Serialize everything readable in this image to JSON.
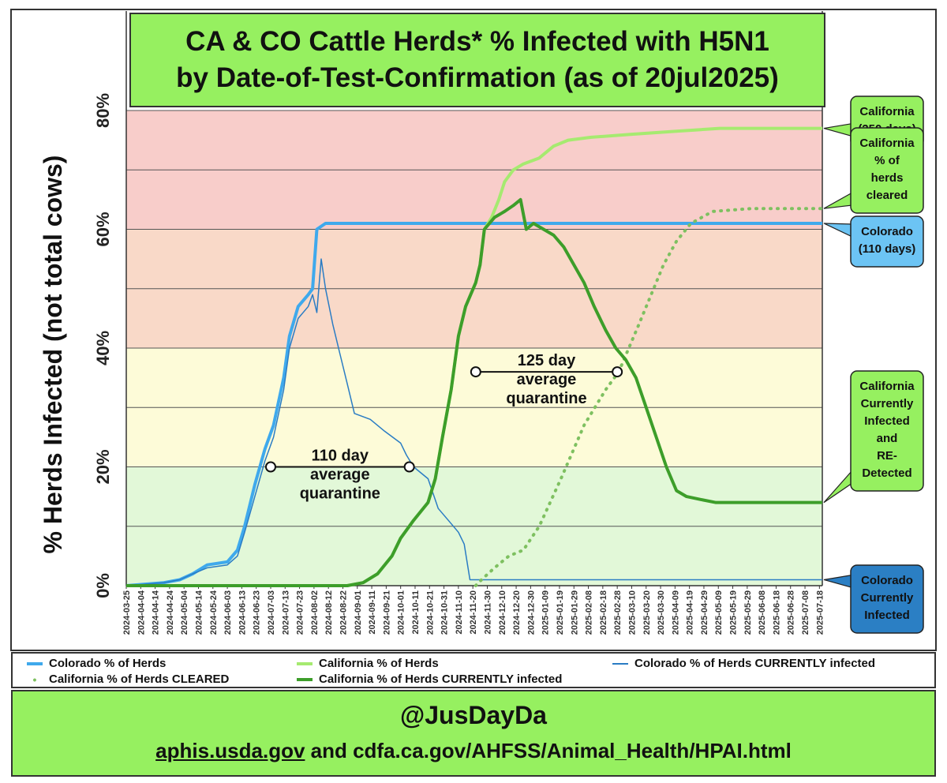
{
  "title": {
    "line1": "CA & CO Cattle Herds* % Infected with H5N1",
    "line2": "by Date-of-Test-Confirmation (as of 20jul2025)"
  },
  "footer": {
    "handle": "@JusDayDa",
    "source_link": "aphis.usda.gov",
    "source_rest": " and cdfa.ca.gov/AHFSS/Animal_Health/HPAI.html"
  },
  "legend": {
    "items": [
      {
        "label": "Colorado % of Herds",
        "color": "#3fa9ec",
        "style": "line"
      },
      {
        "label": "California % of Herds",
        "color": "#a6ea70",
        "style": "line"
      },
      {
        "label": "Colorado % of Herds CURRENTLY infected",
        "color": "#2a7cc4",
        "style": "thin"
      },
      {
        "label": "California % of Herds CLEARED",
        "color": "#7ec060",
        "style": "dot"
      },
      {
        "label": "California % of Herds CURRENTLY infected",
        "color": "#3d9e2a",
        "style": "line"
      }
    ]
  },
  "chart_data": {
    "type": "line",
    "ylabel": "% Herds Infected (not total cows)",
    "ylim": [
      0,
      80
    ],
    "yticks": [
      "0%",
      "20%",
      "40%",
      "60%",
      "80%"
    ],
    "x_start": "2024-03-25",
    "x_end": "2025-07-20",
    "x_tick_labels": [
      "2024-03-25",
      "2024-04-04",
      "2024-04-14",
      "2024-04-24",
      "2024-05-04",
      "2024-05-14",
      "2024-05-24",
      "2024-06-03",
      "2024-06-13",
      "2024-06-23",
      "2024-07-03",
      "2024-07-13",
      "2024-07-23",
      "2024-08-02",
      "2024-08-12",
      "2024-08-22",
      "2024-09-01",
      "2024-09-11",
      "2024-09-21",
      "2024-10-01",
      "2024-10-11",
      "2024-10-21",
      "2024-10-31",
      "2024-11-10",
      "2024-11-20",
      "2024-11-30",
      "2024-12-10",
      "2024-12-20",
      "2024-12-30",
      "2025-01-09",
      "2025-01-19",
      "2025-01-29",
      "2025-02-08",
      "2025-02-18",
      "2025-02-28",
      "2025-03-10",
      "2025-03-20",
      "2025-03-30",
      "2025-04-09",
      "2025-04-19",
      "2025-04-29",
      "2025-05-09",
      "2025-05-19",
      "2025-05-29",
      "2025-06-08",
      "2025-06-18",
      "2025-06-28",
      "2025-07-08",
      "2025-07-18"
    ],
    "bands": [
      {
        "from": 0,
        "to": 20,
        "color": "#e2f8d8"
      },
      {
        "from": 20,
        "to": 40,
        "color": "#fdfbd8"
      },
      {
        "from": 40,
        "to": 60,
        "color": "#f9d9c8"
      },
      {
        "from": 60,
        "to": 80,
        "color": "#f8cdca"
      }
    ],
    "series": [
      {
        "name": "Colorado % of Herds",
        "color": "#3fa9ec",
        "width": 4,
        "dash": "",
        "points": [
          [
            "2024-03-25",
            0
          ],
          [
            "2024-04-20",
            0.5
          ],
          [
            "2024-05-01",
            1
          ],
          [
            "2024-05-10",
            2
          ],
          [
            "2024-05-20",
            3.5
          ],
          [
            "2024-06-03",
            4
          ],
          [
            "2024-06-10",
            6
          ],
          [
            "2024-06-15",
            10
          ],
          [
            "2024-06-22",
            17
          ],
          [
            "2024-06-29",
            23
          ],
          [
            "2024-07-05",
            27
          ],
          [
            "2024-07-12",
            35
          ],
          [
            "2024-07-16",
            42
          ],
          [
            "2024-07-22",
            47
          ],
          [
            "2024-07-29",
            49
          ],
          [
            "2024-08-01",
            50
          ],
          [
            "2024-08-04",
            60
          ],
          [
            "2024-08-10",
            61
          ],
          [
            "2025-07-20",
            61
          ]
        ]
      },
      {
        "name": "Colorado % of Herds CURRENTLY infected",
        "color": "#2a7cc4",
        "width": 1.5,
        "dash": "",
        "points": [
          [
            "2024-03-25",
            0
          ],
          [
            "2024-04-20",
            0.5
          ],
          [
            "2024-05-01",
            1
          ],
          [
            "2024-05-10",
            2
          ],
          [
            "2024-05-20",
            3
          ],
          [
            "2024-06-03",
            3.5
          ],
          [
            "2024-06-10",
            5
          ],
          [
            "2024-06-15",
            9
          ],
          [
            "2024-06-22",
            15
          ],
          [
            "2024-06-29",
            21
          ],
          [
            "2024-07-05",
            25
          ],
          [
            "2024-07-12",
            33
          ],
          [
            "2024-07-16",
            40
          ],
          [
            "2024-07-22",
            45
          ],
          [
            "2024-07-29",
            47
          ],
          [
            "2024-08-01",
            49
          ],
          [
            "2024-08-04",
            46
          ],
          [
            "2024-08-07",
            55
          ],
          [
            "2024-08-10",
            50
          ],
          [
            "2024-08-15",
            44
          ],
          [
            "2024-08-20",
            39
          ],
          [
            "2024-08-25",
            34
          ],
          [
            "2024-08-30",
            29
          ],
          [
            "2024-09-10",
            28
          ],
          [
            "2024-09-20",
            26
          ],
          [
            "2024-10-01",
            24
          ],
          [
            "2024-10-05",
            22
          ],
          [
            "2024-10-10",
            20
          ],
          [
            "2024-10-20",
            18
          ],
          [
            "2024-10-27",
            13
          ],
          [
            "2024-11-03",
            11
          ],
          [
            "2024-11-10",
            9
          ],
          [
            "2024-11-14",
            7
          ],
          [
            "2024-11-18",
            1
          ],
          [
            "2025-07-20",
            1
          ]
        ]
      },
      {
        "name": "California % of Herds",
        "color": "#a6ea70",
        "width": 4,
        "dash": "",
        "points": [
          [
            "2024-03-25",
            0
          ],
          [
            "2024-08-25",
            0
          ],
          [
            "2024-09-05",
            0.5
          ],
          [
            "2024-09-15",
            2
          ],
          [
            "2024-09-25",
            5
          ],
          [
            "2024-10-01",
            8
          ],
          [
            "2024-10-10",
            11
          ],
          [
            "2024-10-20",
            14
          ],
          [
            "2024-10-25",
            18
          ],
          [
            "2024-10-30",
            25
          ],
          [
            "2024-11-05",
            33
          ],
          [
            "2024-11-10",
            42
          ],
          [
            "2024-11-15",
            47
          ],
          [
            "2024-11-22",
            51
          ],
          [
            "2024-11-25",
            54
          ],
          [
            "2024-11-28",
            60
          ],
          [
            "2024-12-03",
            62
          ],
          [
            "2024-12-08",
            65
          ],
          [
            "2024-12-12",
            68
          ],
          [
            "2024-12-18",
            70
          ],
          [
            "2024-12-25",
            71
          ],
          [
            "2025-01-05",
            72
          ],
          [
            "2025-01-15",
            74
          ],
          [
            "2025-01-25",
            75
          ],
          [
            "2025-02-10",
            75.5
          ],
          [
            "2025-03-10",
            76
          ],
          [
            "2025-04-10",
            76.5
          ],
          [
            "2025-05-10",
            77
          ],
          [
            "2025-07-20",
            77
          ]
        ]
      },
      {
        "name": "California % of Herds CURRENTLY infected",
        "color": "#3d9e2a",
        "width": 4,
        "dash": "",
        "points": [
          [
            "2024-03-25",
            0
          ],
          [
            "2024-08-25",
            0
          ],
          [
            "2024-09-05",
            0.5
          ],
          [
            "2024-09-15",
            2
          ],
          [
            "2024-09-25",
            5
          ],
          [
            "2024-10-01",
            8
          ],
          [
            "2024-10-10",
            11
          ],
          [
            "2024-10-20",
            14
          ],
          [
            "2024-10-25",
            18
          ],
          [
            "2024-10-30",
            25
          ],
          [
            "2024-11-05",
            33
          ],
          [
            "2024-11-10",
            42
          ],
          [
            "2024-11-15",
            47
          ],
          [
            "2024-11-22",
            51
          ],
          [
            "2024-11-25",
            54
          ],
          [
            "2024-11-28",
            60
          ],
          [
            "2024-12-05",
            62
          ],
          [
            "2024-12-12",
            63
          ],
          [
            "2024-12-18",
            64
          ],
          [
            "2024-12-23",
            65
          ],
          [
            "2024-12-27",
            60
          ],
          [
            "2025-01-01",
            61
          ],
          [
            "2025-01-08",
            60
          ],
          [
            "2025-01-15",
            59
          ],
          [
            "2025-01-22",
            57
          ],
          [
            "2025-01-29",
            54
          ],
          [
            "2025-02-05",
            51
          ],
          [
            "2025-02-12",
            47
          ],
          [
            "2025-02-20",
            43
          ],
          [
            "2025-02-27",
            40
          ],
          [
            "2025-03-06",
            38
          ],
          [
            "2025-03-13",
            35
          ],
          [
            "2025-03-20",
            30
          ],
          [
            "2025-03-27",
            25
          ],
          [
            "2025-04-03",
            20
          ],
          [
            "2025-04-10",
            16
          ],
          [
            "2025-04-17",
            15
          ],
          [
            "2025-04-27",
            14.5
          ],
          [
            "2025-05-07",
            14
          ],
          [
            "2025-06-01",
            14
          ],
          [
            "2025-07-20",
            14
          ]
        ]
      },
      {
        "name": "California % of Herds CLEARED",
        "color": "#7ec060",
        "width": 4,
        "dash": "1 8",
        "points": [
          [
            "2024-11-22",
            0
          ],
          [
            "2024-11-26",
            1
          ],
          [
            "2024-12-05",
            3
          ],
          [
            "2024-12-15",
            5
          ],
          [
            "2024-12-25",
            6
          ],
          [
            "2025-01-05",
            10
          ],
          [
            "2025-01-20",
            18
          ],
          [
            "2025-02-05",
            27
          ],
          [
            "2025-02-20",
            33
          ],
          [
            "2025-03-01",
            36
          ],
          [
            "2025-03-15",
            44
          ],
          [
            "2025-04-01",
            54
          ],
          [
            "2025-04-10",
            58
          ],
          [
            "2025-04-20",
            61
          ],
          [
            "2025-05-05",
            63
          ],
          [
            "2025-06-01",
            63.5
          ],
          [
            "2025-07-20",
            63.5
          ]
        ]
      }
    ],
    "annotations": [
      {
        "lines": [
          "110 day",
          "average",
          "quarantine"
        ],
        "from": "2024-07-03",
        "to": "2024-10-07",
        "y": 20
      },
      {
        "lines": [
          "125 day",
          "average",
          "quarantine"
        ],
        "from": "2024-11-22",
        "to": "2025-02-28",
        "y": 36
      }
    ],
    "callouts": [
      {
        "lines": [
          "California",
          "(250 days)"
        ],
        "y": 77,
        "fill": "#96f060"
      },
      {
        "lines": [
          "California",
          "% of",
          "herds",
          "cleared"
        ],
        "y": 63.5,
        "fill": "#96f060"
      },
      {
        "lines": [
          "Colorado",
          "(110 days)"
        ],
        "y": 61,
        "fill": "#6cc4f4"
      },
      {
        "lines": [
          "California",
          "Currently",
          "Infected",
          "and",
          "RE-",
          "Detected"
        ],
        "y": 14,
        "fill": "#96f060"
      },
      {
        "lines": [
          "Colorado",
          "Currently",
          "Infected"
        ],
        "y": 1,
        "fill": "#2b7fc4"
      }
    ]
  }
}
